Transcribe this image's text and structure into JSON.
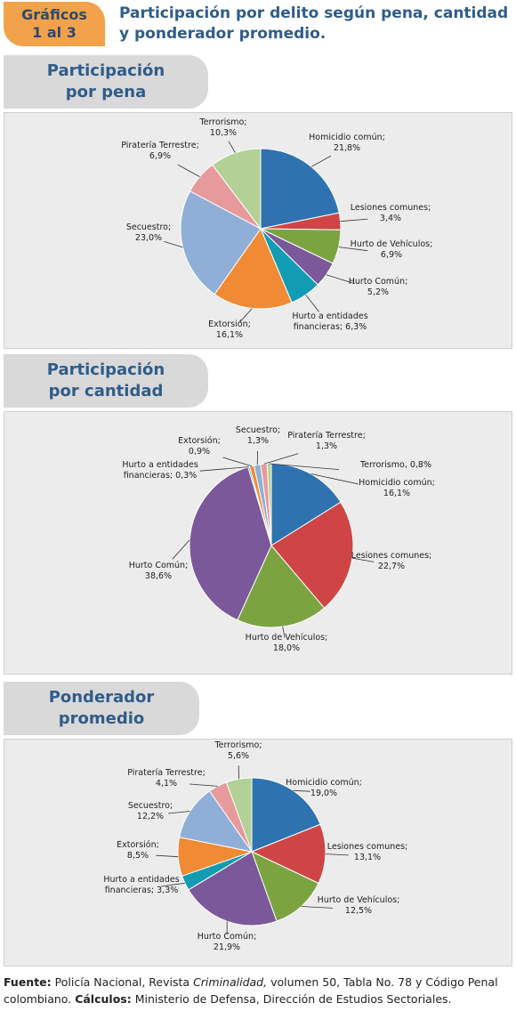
{
  "header": {
    "badge_line1": "Gráficos",
    "badge_line2": "1 al 3",
    "title_line1": "Participación por delito según pena, cantidad",
    "title_line2": "y ponderador promedio."
  },
  "sections": [
    {
      "title_line1": "Participación",
      "title_line2": "por pena"
    },
    {
      "title_line1": "Participación",
      "title_line2": "por cantidad"
    },
    {
      "title_line1": "Ponderador",
      "title_line2": "promedio"
    }
  ],
  "chart_data": [
    {
      "type": "pie",
      "title": "Participación por pena",
      "slices": [
        {
          "name": "Homicidio común",
          "value": 21.8,
          "label": "21,8%",
          "color": "#2e73b0"
        },
        {
          "name": "Lesiones comunes",
          "value": 3.4,
          "label": "3,4%",
          "color": "#cf4545"
        },
        {
          "name": "Hurto de Vehículos",
          "value": 6.9,
          "label": "6,9%",
          "color": "#7ba441"
        },
        {
          "name": "Hurto Común",
          "value": 5.2,
          "label": "5,2%",
          "color": "#7a5899"
        },
        {
          "name": "Hurto a entidades financieras",
          "value": 6.3,
          "label": "6,3%",
          "color": "#129cb3"
        },
        {
          "name": "Extorsión",
          "value": 16.1,
          "label": "16,1%",
          "color": "#f08a35"
        },
        {
          "name": "Secuestro",
          "value": 23.0,
          "label": "23,0%",
          "color": "#8fafd7"
        },
        {
          "name": "Piratería Terrestre",
          "value": 6.9,
          "label": "6,9%",
          "color": "#e79a9b"
        },
        {
          "name": "Terrorismo",
          "value": 10.3,
          "label": "10,3%",
          "color": "#b3d197"
        }
      ]
    },
    {
      "type": "pie",
      "title": "Participación por cantidad",
      "slices": [
        {
          "name": "Homicidio común",
          "value": 16.1,
          "label": "16,1%",
          "color": "#2e73b0"
        },
        {
          "name": "Lesiones comunes",
          "value": 22.7,
          "label": "22,7%",
          "color": "#cf4545"
        },
        {
          "name": "Hurto de Vehículos",
          "value": 18.0,
          "label": "18,0%",
          "color": "#7ba441"
        },
        {
          "name": "Hurto Común",
          "value": 38.6,
          "label": "38,6%",
          "color": "#7a5899"
        },
        {
          "name": "Hurto a entidades financieras",
          "value": 0.3,
          "label": "0,3%",
          "color": "#129cb3"
        },
        {
          "name": "Extorsión",
          "value": 0.9,
          "label": "0,9%",
          "color": "#f08a35"
        },
        {
          "name": "Secuestro",
          "value": 1.3,
          "label": "1,3%",
          "color": "#8fafd7"
        },
        {
          "name": "Piratería Terrestre",
          "value": 1.3,
          "label": "1,3%",
          "color": "#e79a9b"
        },
        {
          "name": "Terrorismo",
          "value": 0.8,
          "label": "0,8%",
          "color": "#b3d197"
        }
      ]
    },
    {
      "type": "pie",
      "title": "Ponderador promedio",
      "slices": [
        {
          "name": "Homicidio común",
          "value": 19.0,
          "label": "19,0%",
          "color": "#2e73b0"
        },
        {
          "name": "Lesiones comunes",
          "value": 13.1,
          "label": "13,1%",
          "color": "#cf4545"
        },
        {
          "name": "Hurto de Vehículos",
          "value": 12.5,
          "label": "12,5%",
          "color": "#7ba441"
        },
        {
          "name": "Hurto Común",
          "value": 21.9,
          "label": "21,9%",
          "color": "#7a5899"
        },
        {
          "name": "Hurto a entidades financieras",
          "value": 3.3,
          "label": "3,3%",
          "color": "#129cb3"
        },
        {
          "name": "Extorsión",
          "value": 8.5,
          "label": "8,5%",
          "color": "#f08a35"
        },
        {
          "name": "Secuestro",
          "value": 12.2,
          "label": "12,2%",
          "color": "#8fafd7"
        },
        {
          "name": "Piratería Terrestre",
          "value": 4.1,
          "label": "4,1%",
          "color": "#e79a9b"
        },
        {
          "name": "Terrorismo",
          "value": 5.6,
          "label": "5,6%",
          "color": "#b3d197"
        }
      ]
    }
  ],
  "source": {
    "fuente_label": "Fuente:",
    "fuente_text_1": "Policía Nacional, Revista",
    "fuente_italic": "Criminalidad,",
    "fuente_text_2": "volumen 50, Tabla No. 78 y Código Penal colombiano.",
    "calculos_label": "Cálculos:",
    "calculos_text": "Ministerio de Defensa, Dirección de Estudios Sectoriales."
  }
}
